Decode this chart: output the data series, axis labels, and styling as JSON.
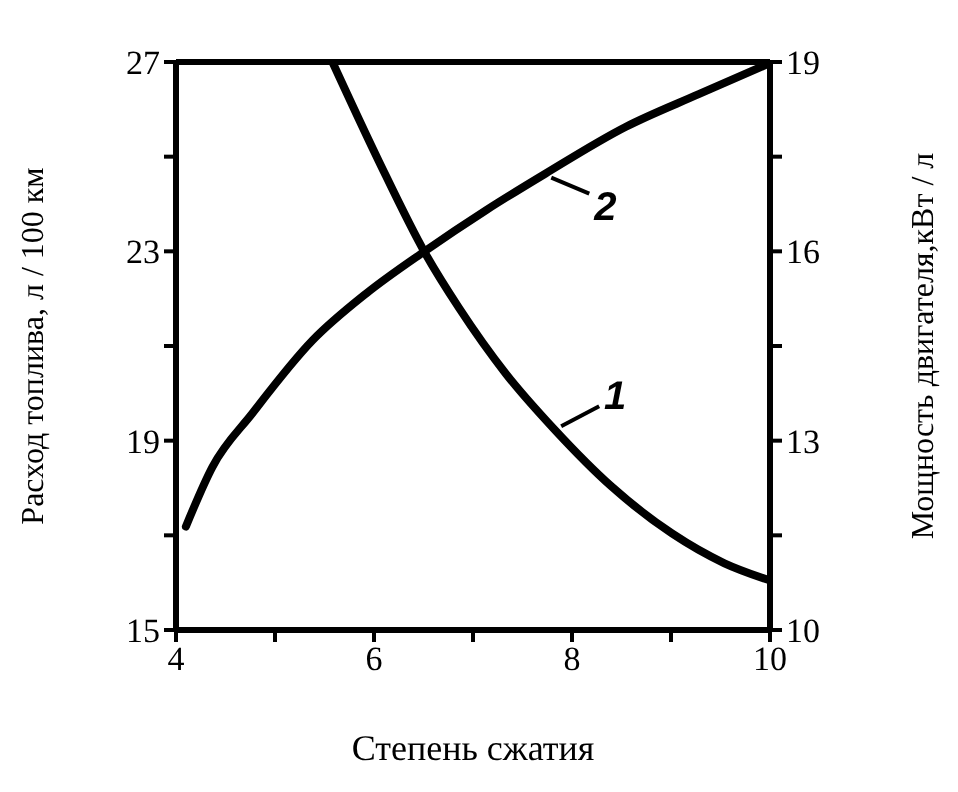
{
  "chart_data": {
    "type": "line",
    "xlabel": "Степень сжатия",
    "ylabel": "Расход топлива,  л / 100 км",
    "y2label": "Мощность двигателя,кВт / л",
    "xlim": [
      4,
      10
    ],
    "xticks": [
      4,
      {
        "value": 5,
        "label": null
      },
      6,
      {
        "value": 7,
        "label": null
      },
      8,
      {
        "value": 9,
        "label": null
      },
      10
    ],
    "ylim": [
      15,
      27
    ],
    "yticks": [
      15,
      {
        "value": 17,
        "label": null
      },
      19,
      {
        "value": 21,
        "label": null
      },
      23,
      {
        "value": 25,
        "label": null
      },
      27
    ],
    "y2lim": [
      10,
      19
    ],
    "y2ticks": [
      10,
      {
        "value": 11.5,
        "label": null
      },
      13,
      {
        "value": 14.5,
        "label": null
      },
      16,
      {
        "value": 17.5,
        "label": null
      },
      19
    ],
    "legend": "right",
    "marker": "none",
    "line_style": "solid",
    "series": [
      {
        "name": "1",
        "color": "#000000",
        "x": [
          5.58,
          6.05,
          6.52,
          6.86,
          7.33,
          7.83,
          8.4,
          9.01,
          9.54,
          9.98
        ],
        "values": [
          27,
          24.9,
          22.95,
          21.8,
          20.42,
          19.22,
          18.03,
          17.04,
          16.41,
          16.06
        ]
      },
      {
        "name": "2",
        "color": "#000000",
        "axis": "y2",
        "x": [
          4.1,
          4.37,
          4.77,
          5.38,
          5.92,
          6.52,
          7.13,
          7.73,
          8.54,
          9.28,
          9.98
        ],
        "values": [
          11.64,
          12.59,
          13.43,
          14.59,
          15.33,
          16.01,
          16.65,
          17.23,
          17.97,
          18.49,
          18.97
        ]
      }
    ]
  }
}
